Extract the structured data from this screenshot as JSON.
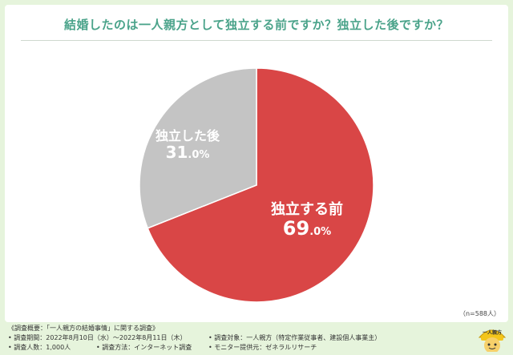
{
  "chart_data": {
    "type": "pie",
    "title": "結婚したのは一人親方として独立する前ですか？独立した後ですか？",
    "slices": [
      {
        "label": "独立する前",
        "value": 69.0,
        "pct_num": "69",
        "pct_unit": ".0%",
        "color": "#d94646"
      },
      {
        "label": "独立した後",
        "value": 31.0,
        "pct_num": "31",
        "pct_unit": ".0%",
        "color": "#c4c4c4"
      }
    ],
    "start_angle_deg": 0,
    "direction": "clockwise"
  },
  "sample_size": "（n=588人）",
  "footer": {
    "survey_title": "《調査概要：「一人親方の結婚事情」に関する調査》",
    "period": "• 調査期間：2022年8月10日（水）〜2022年8月11日（木）",
    "count": "• 調査人数：1,000人",
    "method": "• 調査方法：インターネット調査",
    "target": "• 調査対象：一人親方（特定作業従事者、建設個人事業主）",
    "provider": "• モニター提供元：ゼネラルリサーチ"
  },
  "logo": {
    "text": "一人親方",
    "icon": "mascot-icon",
    "color": "#f3c51b"
  }
}
